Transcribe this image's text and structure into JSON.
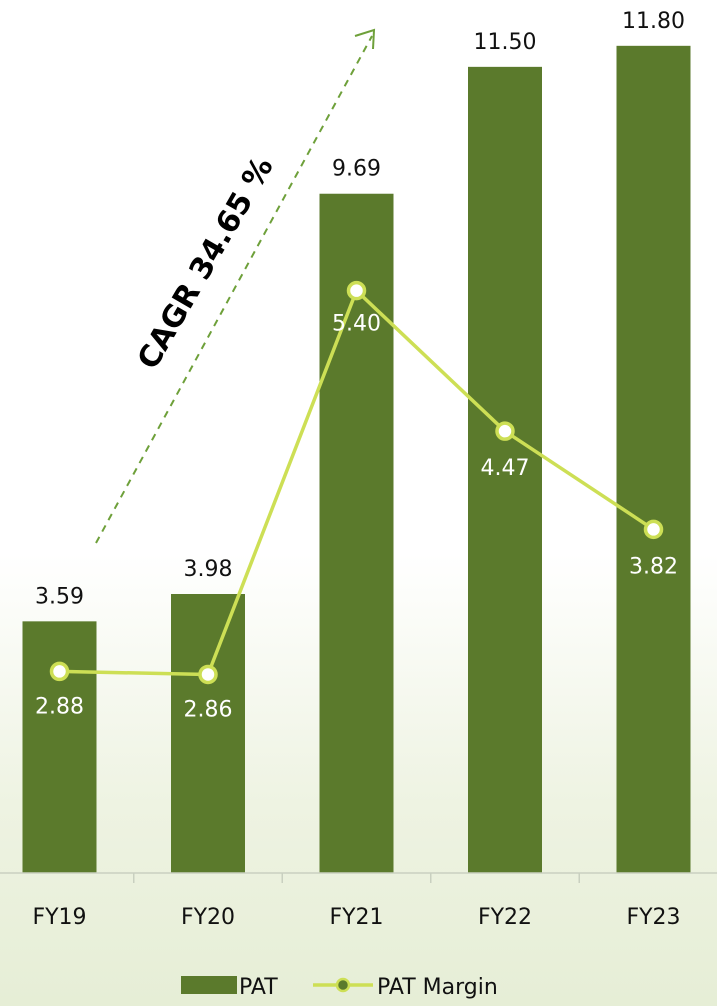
{
  "chart_data": {
    "type": "bar",
    "categories": [
      "FY19",
      "FY20",
      "FY21",
      "FY22",
      "FY23"
    ],
    "series": [
      {
        "name": "PAT",
        "type": "bar",
        "values": [
          3.59,
          3.98,
          9.69,
          11.5,
          11.8
        ],
        "labels": [
          "3.59",
          "3.98",
          "9.69",
          "11.50",
          "11.80"
        ]
      },
      {
        "name": "PAT Margin",
        "type": "line",
        "values": [
          2.88,
          2.86,
          5.4,
          4.47,
          3.82
        ],
        "labels": [
          "2.88",
          "2.86",
          "5.40",
          "4.47",
          "3.82"
        ]
      }
    ],
    "annotation": "CAGR 34.65 %",
    "legend": [
      "PAT",
      "PAT Margin"
    ],
    "legend_position": "bottom",
    "colors": {
      "bar": "#5b7a2c",
      "line": "#cddf55",
      "axis": "#c9d0c0",
      "text": "#111111",
      "annotation": "#6ea03a"
    },
    "grid": false
  }
}
